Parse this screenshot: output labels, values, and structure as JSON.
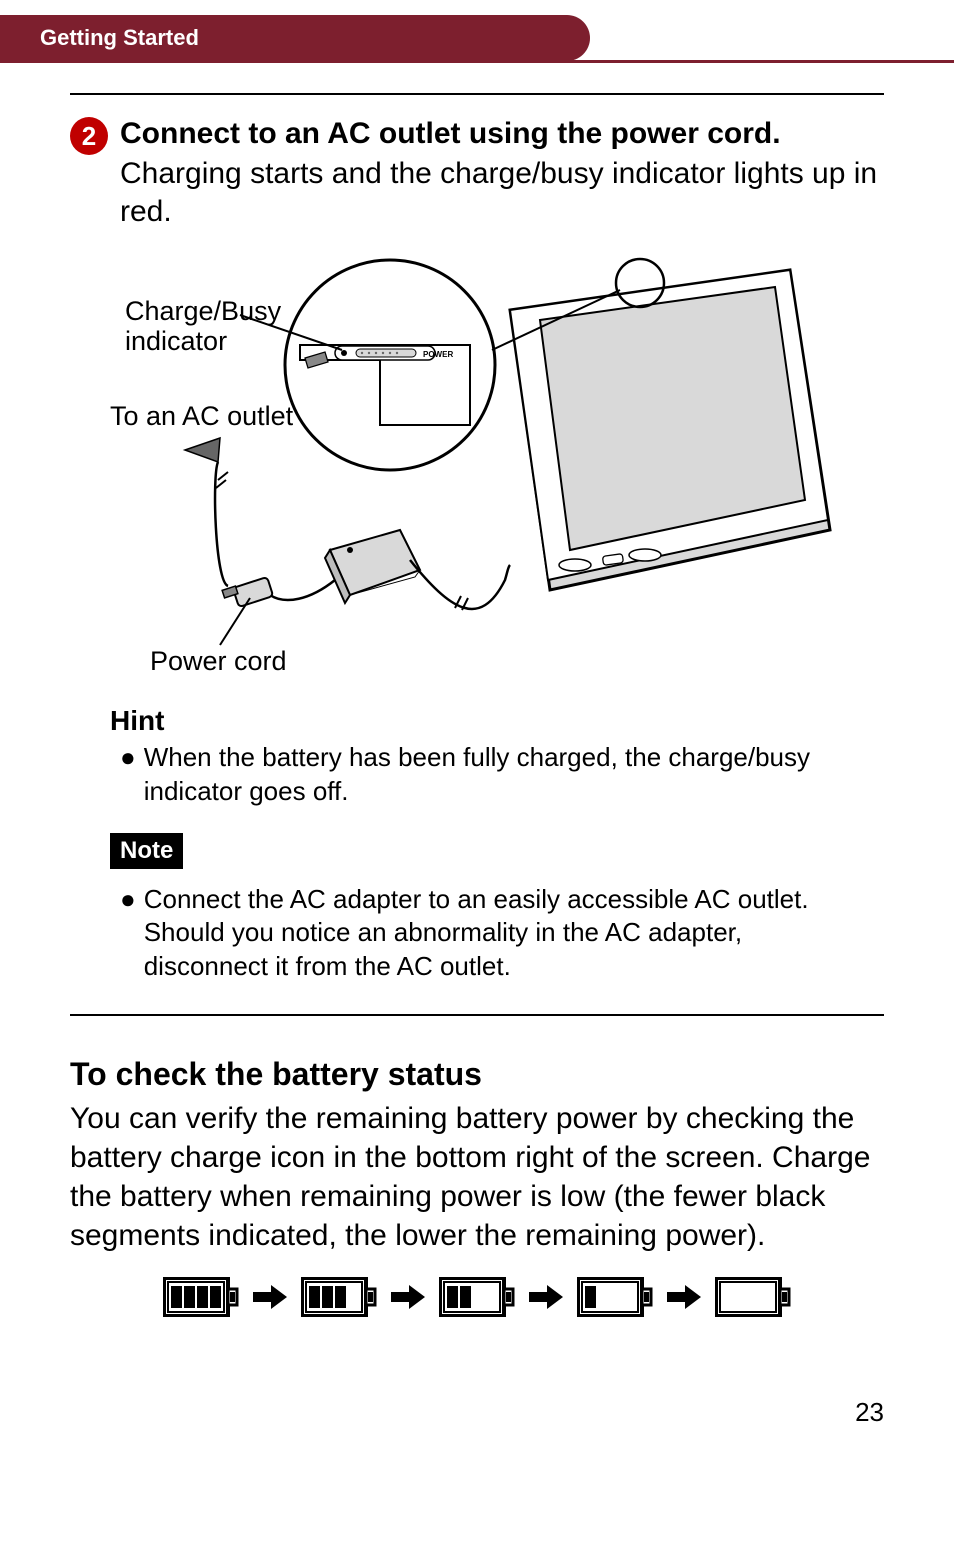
{
  "header": {
    "label": "Getting Started",
    "bg": "#7d1f2e",
    "fg": "#ffffff"
  },
  "step": {
    "number": "2",
    "badge_color": "#c00000",
    "title": "Connect to an AC outlet using the power cord.",
    "body": "Charging starts and the charge/busy indicator lights up in red."
  },
  "diagram": {
    "labels": {
      "charge_busy": "Charge/Busy indicator",
      "to_ac": "To an AC outlet",
      "power_cord": "Power cord",
      "power_text": "POWER"
    },
    "stroke": "#000000",
    "fill_light": "#ffffff",
    "fill_shade": "#d9d9d9"
  },
  "hint": {
    "title": "Hint",
    "text": "When the battery has been fully charged, the charge/busy indicator goes off."
  },
  "note": {
    "badge": "Note",
    "text": "Connect the AC adapter to an easily accessible AC outlet. Should you notice an abnormality in the AC adapter, disconnect it from the AC outlet."
  },
  "battery_section": {
    "title": "To check the battery status",
    "body": "You can verify the remaining battery power by checking the battery charge icon in the bottom right of the screen. Charge the battery when remaining power is low (the fewer black segments indicated, the lower the remaining power).",
    "levels": [
      4,
      3,
      2,
      1,
      0
    ],
    "max_segments": 4,
    "border_color": "#000000",
    "arrow_color": "#000000"
  },
  "page": {
    "number": "23"
  }
}
